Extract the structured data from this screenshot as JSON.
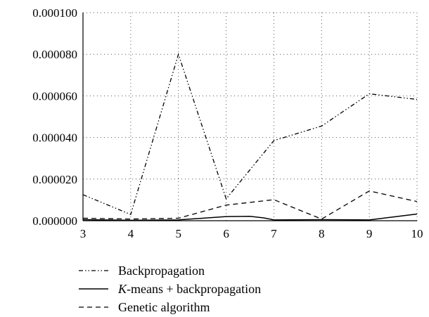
{
  "chart_data": {
    "type": "line",
    "title": "",
    "xlabel": "",
    "ylabel": "",
    "xlim": [
      3,
      10
    ],
    "ylim": [
      0,
      0.0001
    ],
    "x_ticks": [
      "3",
      "4",
      "5",
      "6",
      "7",
      "8",
      "9",
      "10"
    ],
    "y_ticks": [
      "0.000000",
      "0.000020",
      "0.000040",
      "0.000060",
      "0.000080",
      "0.000100"
    ],
    "grid": true,
    "grid_style": "dotted",
    "legend_position": "bottom",
    "series": [
      {
        "name": "Backpropagation",
        "style": "dash-dot-dot",
        "x": [
          3,
          4,
          5,
          6,
          7,
          8,
          9,
          10
        ],
        "y": [
          1.25e-05,
          3e-06,
          8e-05,
          1.05e-05,
          3.85e-05,
          4.55e-05,
          6.1e-05,
          5.83e-05
        ]
      },
      {
        "name": "K-means + backpropagation",
        "style": "solid",
        "x": [
          3,
          4,
          5,
          5.5,
          6,
          6.5,
          6.8,
          7,
          8,
          9,
          10
        ],
        "y": [
          5e-07,
          2e-07,
          4e-07,
          1.2e-06,
          2e-06,
          2.1e-06,
          1.3e-06,
          4e-07,
          5e-07,
          4e-07,
          3.2e-06
        ]
      },
      {
        "name": "Genetic algorithm",
        "style": "dashed",
        "x": [
          3,
          4,
          5,
          6,
          7,
          8,
          9,
          10
        ],
        "y": [
          1.2e-06,
          8e-07,
          1.2e-06,
          7.5e-06,
          1.01e-05,
          8e-07,
          1.43e-05,
          9.2e-06
        ]
      }
    ]
  },
  "legend": {
    "items": [
      {
        "label": "Backpropagation",
        "italic_prefix": "",
        "style": "dash-dot-dot"
      },
      {
        "label": "-means + backpropagation",
        "italic_prefix": "K",
        "style": "solid"
      },
      {
        "label": "Genetic algorithm",
        "italic_prefix": "",
        "style": "dashed"
      }
    ]
  }
}
